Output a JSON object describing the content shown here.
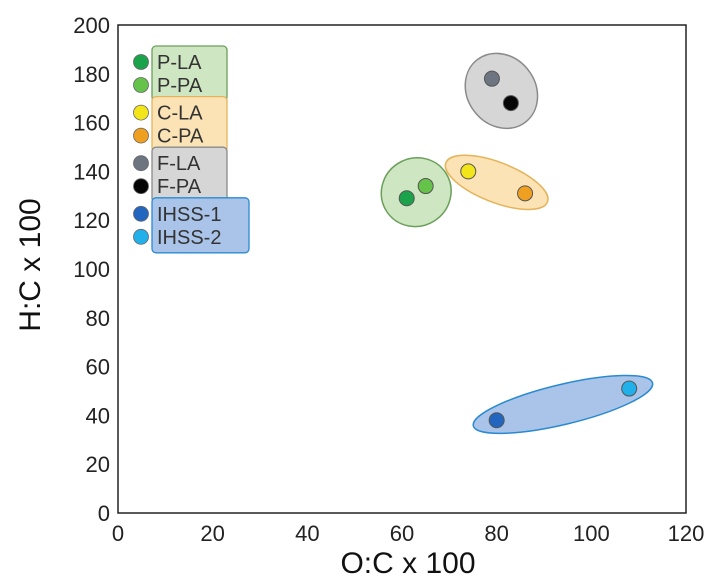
{
  "chart_data": {
    "type": "scatter",
    "title": "",
    "xlabel": "O:C x 100",
    "ylabel": "H:C x 100",
    "xlim": [
      0,
      120
    ],
    "ylim": [
      0,
      200
    ],
    "xticks": [
      "0",
      "20",
      "40",
      "60",
      "80",
      "100",
      "120"
    ],
    "yticks": [
      "0",
      "20",
      "40",
      "60",
      "80",
      "100",
      "120",
      "140",
      "160",
      "180",
      "200"
    ],
    "grid": false,
    "legend_position": "top-left",
    "series": [
      {
        "name": "P-LA",
        "color": "#1aa34a",
        "x": [
          61
        ],
        "y": [
          129
        ]
      },
      {
        "name": "P-PA",
        "color": "#66c34a",
        "x": [
          65
        ],
        "y": [
          134
        ]
      },
      {
        "name": "C-LA",
        "color": "#f2e61a",
        "x": [
          74
        ],
        "y": [
          140
        ]
      },
      {
        "name": "C-PA",
        "color": "#f0a020",
        "x": [
          86
        ],
        "y": [
          131
        ]
      },
      {
        "name": "F-LA",
        "color": "#6d7580",
        "x": [
          79
        ],
        "y": [
          178
        ]
      },
      {
        "name": "F-PA",
        "color": "#050505",
        "x": [
          83
        ],
        "y": [
          168
        ]
      },
      {
        "name": "IHSS-1",
        "color": "#2266c0",
        "x": [
          80
        ],
        "y": [
          38
        ]
      },
      {
        "name": "IHSS-2",
        "color": "#22b0ea",
        "x": [
          108
        ],
        "y": [
          51
        ]
      }
    ],
    "groups": [
      {
        "members": [
          "P-LA",
          "P-PA"
        ],
        "fill": "#cfe6c2",
        "stroke": "#6aa05a"
      },
      {
        "members": [
          "C-LA",
          "C-PA"
        ],
        "fill": "#fbe3b5",
        "stroke": "#e5b35a"
      },
      {
        "members": [
          "F-LA",
          "F-PA"
        ],
        "fill": "#d6d6d6",
        "stroke": "#8a8a8a"
      },
      {
        "members": [
          "IHSS-1",
          "IHSS-2"
        ],
        "fill": "#a9c4e8",
        "stroke": "#2a8ad0"
      }
    ]
  }
}
